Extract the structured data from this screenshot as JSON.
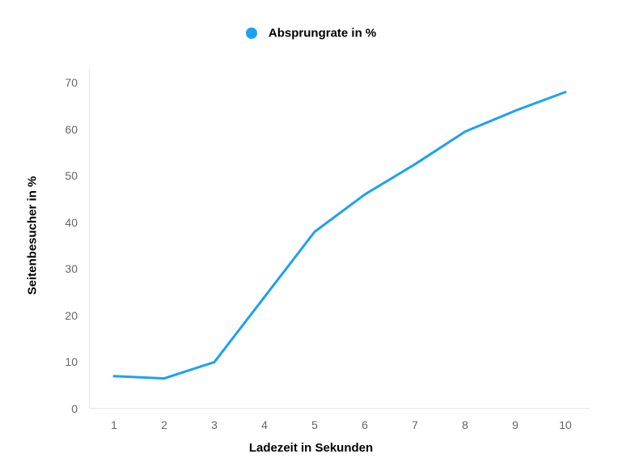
{
  "chart": {
    "type": "line",
    "legend": {
      "label": "Absprungrate in %",
      "marker_color": "#1da1f2",
      "fontsize": 15,
      "font_weight": "600"
    },
    "x_axis": {
      "label": "Ladezeit in Sekunden",
      "min": 0.5,
      "max": 10.5,
      "ticks": [
        1,
        2,
        3,
        4,
        5,
        6,
        7,
        8,
        9,
        10
      ],
      "tick_fontsize": 14,
      "tick_color": "#666666",
      "label_fontsize": 15,
      "label_font_weight": "700",
      "axis_color": "#e8e8e8",
      "axis_width": 2
    },
    "y_axis": {
      "label": "Seitenbesucher in %",
      "min": 0,
      "max": 73,
      "ticks": [
        0,
        10,
        20,
        30,
        40,
        50,
        60,
        70
      ],
      "tick_fontsize": 14,
      "tick_color": "#666666",
      "label_fontsize": 15,
      "label_font_weight": "700",
      "axis_color": "#e8e8e8",
      "axis_width": 2
    },
    "series": {
      "color": "#1da1f2",
      "line_width": 3,
      "x": [
        1,
        2,
        3,
        4,
        5,
        6,
        7,
        8,
        9,
        10
      ],
      "y": [
        7,
        6.5,
        10,
        24,
        38,
        46,
        52.5,
        59.5,
        64,
        68
      ]
    },
    "background_color": "#ffffff",
    "grid": false
  }
}
